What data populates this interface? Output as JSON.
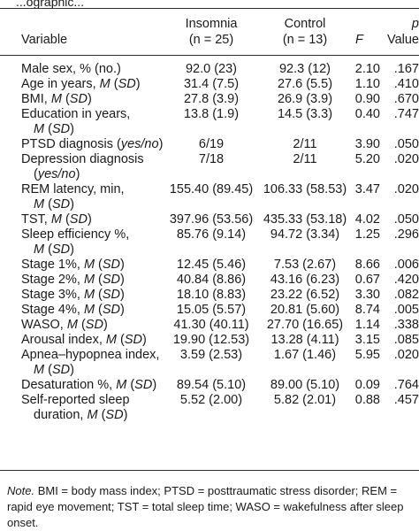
{
  "top_fragment": "...ographic...",
  "header": {
    "variable": "Variable",
    "insomnia_label": "Insomnia",
    "insomnia_n": "(n = 25)",
    "control_label": "Control",
    "control_n": "(n = 13)",
    "f": "F",
    "p_symbol": "p",
    "p_value": "Value"
  },
  "rows": [
    {
      "var1": "Male sex, % (no.)",
      "var2": "",
      "ins": "92.0 (23)",
      "ctl": "92.3 (12)",
      "f": "2.10",
      "p": ".167"
    },
    {
      "var1": "Age in years, M (SD)",
      "var2": "",
      "ins": "31.4 (7.5)",
      "ctl": "27.6 (5.5)",
      "f": "1.10",
      "p": ".410"
    },
    {
      "var1": "BMI, M (SD)",
      "var2": "",
      "ins": "27.8 (3.9)",
      "ctl": "26.9 (3.9)",
      "f": "0.90",
      "p": ".670"
    },
    {
      "var1": "Education in years,",
      "var2": "M (SD)",
      "ins": "13.8 (1.9)",
      "ctl": "14.5 (3.3)",
      "f": "0.40",
      "p": ".747"
    },
    {
      "var1": "PTSD diagnosis (yes/no)",
      "var2": "",
      "ins": "6/19",
      "ctl": "2/11",
      "f": "3.90",
      "p": ".050"
    },
    {
      "var1": "Depression diagnosis",
      "var2": "(yes/no)",
      "ins": "7/18",
      "ctl": "2/11",
      "f": "5.20",
      "p": ".020"
    },
    {
      "var1": "REM latency, min,",
      "var2": "M (SD)",
      "ins": "155.40 (89.45)",
      "ctl": "106.33 (58.53)",
      "f": "3.47",
      "p": ".020"
    },
    {
      "var1": "TST, M (SD)",
      "var2": "",
      "ins": "397.96 (53.56)",
      "ctl": "435.33 (53.18)",
      "f": "4.02",
      "p": ".050"
    },
    {
      "var1": "Sleep efficiency %,",
      "var2": "M (SD)",
      "ins": "85.76 (9.14)",
      "ctl": "94.72 (3.34)",
      "f": "1.25",
      "p": ".296"
    },
    {
      "var1": "Stage 1%, M (SD)",
      "var2": "",
      "ins": "12.45 (5.46)",
      "ctl": "7.53 (2.67)",
      "f": "8.66",
      "p": ".006"
    },
    {
      "var1": "Stage 2%, M (SD)",
      "var2": "",
      "ins": "40.84 (8.86)",
      "ctl": "43.16 (6.23)",
      "f": "0.67",
      "p": ".420"
    },
    {
      "var1": "Stage 3%, M (SD)",
      "var2": "",
      "ins": "18.10 (8.83)",
      "ctl": "23.22 (6.52)",
      "f": "3.30",
      "p": ".082"
    },
    {
      "var1": "Stage 4%, M (SD)",
      "var2": "",
      "ins": "15.05 (5.57)",
      "ctl": "20.81 (5.60)",
      "f": "8.74",
      "p": ".005"
    },
    {
      "var1": "WASO, M (SD)",
      "var2": "",
      "ins": "41.30 (40.11)",
      "ctl": "27.70 (16.65)",
      "f": "1.14",
      "p": ".338"
    },
    {
      "var1": "Arousal index, M (SD)",
      "var2": "",
      "ins": "19.90 (12.53)",
      "ctl": "13.28 (4.11)",
      "f": "3.15",
      "p": ".085"
    },
    {
      "var1": "Apnea–hypopnea index,",
      "var2": "M (SD)",
      "ins": "3.59 (2.53)",
      "ctl": "1.67 (1.46)",
      "f": "5.95",
      "p": ".020"
    },
    {
      "var1": "Desaturation %, M (SD)",
      "var2": "",
      "ins": "89.54 (5.10)",
      "ctl": "89.00 (5.10)",
      "f": "0.09",
      "p": ".764"
    },
    {
      "var1": "Self-reported sleep",
      "var2": "duration, M (SD)",
      "ins": "5.52 (2.00)",
      "ctl": "5.82 (2.01)",
      "f": "0.88",
      "p": ".457"
    }
  ],
  "note": {
    "label": "Note.",
    "line1": "BMI = body mass index; PTSD = posttraumatic stress disorder; REM =",
    "line2": "rapid eye movement; TST = total sleep time; WASO = wakefulness after sleep",
    "line3": "onset."
  }
}
